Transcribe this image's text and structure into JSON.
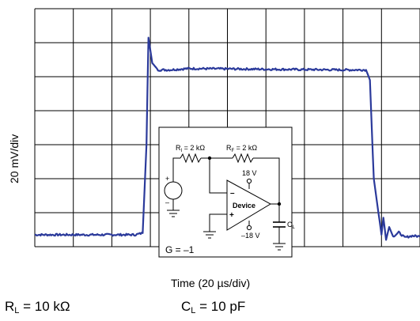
{
  "chart_data": {
    "type": "line",
    "ylabel": "20 mV/div",
    "xlabel": "Time (20 µs/div)",
    "x_divisions": 10,
    "y_divisions": 7,
    "grid": true,
    "series": [
      {
        "x": [
          0,
          2.6,
          2.8,
          2.9,
          2.95,
          3.05,
          3.2,
          3.5,
          4,
          5,
          6,
          7,
          8,
          8.6,
          8.7,
          8.8,
          9.0,
          9.05,
          9.12,
          9.2,
          9.3,
          9.45,
          9.6,
          9.8,
          10
        ],
        "y": [
          0.35,
          0.35,
          0.4,
          3,
          6.15,
          5.4,
          5.2,
          5.2,
          5.24,
          5.23,
          5.22,
          5.21,
          5.2,
          5.2,
          4.9,
          2,
          0.35,
          0.85,
          0.2,
          0.58,
          0.3,
          0.42,
          0.27,
          0.32,
          0.3
        ]
      }
    ],
    "inset": {
      "ri": "R",
      "ri_sub": "I",
      "ri_val": " = 2 kΩ",
      "rf": "R",
      "rf_sub": "F",
      "rf_val": " = 2 kΩ",
      "vplus": "18 V",
      "vminus": "–18 V",
      "device": "Device",
      "cl": "C",
      "cl_sub": "L",
      "gain": "G = –1",
      "src_plus": "+",
      "src_minus": "–",
      "op_minus": "–",
      "op_plus": "+"
    }
  },
  "conditions": {
    "rl_symbol": "R",
    "rl_sub": "L",
    "rl_value": " = 10 kΩ",
    "cl_symbol": "C",
    "cl_sub": "L",
    "cl_value": " = 10 pF"
  },
  "colors": {
    "trace": "#2b3a9b",
    "grid": "#000000"
  }
}
